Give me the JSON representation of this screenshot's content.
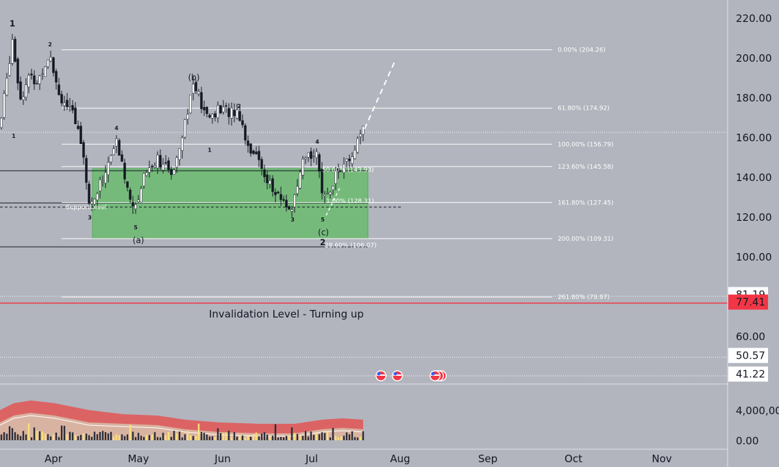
{
  "chart_data": {
    "type": "candlestick",
    "y_axis": {
      "ticks": [
        {
          "label": "220.00",
          "value": 220
        },
        {
          "label": "200.00",
          "value": 200
        },
        {
          "label": "180.00",
          "value": 180
        },
        {
          "label": "160.00",
          "value": 160
        },
        {
          "label": "140.00",
          "value": 140
        },
        {
          "label": "120.00",
          "value": 120
        },
        {
          "label": "100.00",
          "value": 100
        },
        {
          "label": "60.00",
          "value": 60
        }
      ],
      "price_tags": [
        {
          "label": "81.19",
          "value": 81.19,
          "style": "white"
        },
        {
          "label": "77.41",
          "value": 77.41,
          "style": "red"
        },
        {
          "label": "50.57",
          "value": 50.57,
          "style": "white"
        },
        {
          "label": "41.22",
          "value": 41.22,
          "style": "white"
        }
      ]
    },
    "volume_axis": {
      "ticks": [
        {
          "label": "4,000,000",
          "value": 4000000
        },
        {
          "label": "0.00",
          "value": 0
        }
      ]
    },
    "x_axis": {
      "ticks": [
        "Apr",
        "May",
        "Jun",
        "Jul",
        "Aug",
        "Sep",
        "Oct",
        "Nov"
      ]
    },
    "fib_levels": [
      {
        "label": "0.00% (204.26)",
        "value": 204.26
      },
      {
        "label": "61.80% (174.92)",
        "value": 174.92
      },
      {
        "label": "100.00% (156.79)",
        "value": 156.79
      },
      {
        "label": "123.60% (145.58)",
        "value": 145.58
      },
      {
        "label": "161.80% (127.45)",
        "value": 127.45
      },
      {
        "label": "200.00% (109.31)",
        "value": 109.31
      },
      {
        "label": "261.80% (79.97)",
        "value": 79.97
      }
    ],
    "box_fib_labels": [
      {
        "label": "50.00% (143.93)",
        "value": 143.93
      },
      {
        "label": "1.00% (128.31)",
        "value": 128.31
      },
      {
        "label": "28.60% (106.07)",
        "value": 106.07
      }
    ],
    "support_label": "SupportLevel",
    "invalidation_label": "Invalidation Level - Turning up",
    "invalidation_value": 77.41,
    "wave_labels": [
      {
        "text": "1",
        "day": 18,
        "price": 216
      },
      {
        "text": "2",
        "day": 73,
        "price": 206
      },
      {
        "text": "1",
        "day": 20,
        "price": 160
      },
      {
        "text": "3",
        "day": 131,
        "price": 119
      },
      {
        "text": "4",
        "day": 170,
        "price": 164
      },
      {
        "text": "5",
        "day": 198,
        "price": 114
      },
      {
        "text": "(a)",
        "day": 202,
        "price": 107
      },
      {
        "text": "(b)",
        "day": 283,
        "price": 189
      },
      {
        "text": "1",
        "day": 306,
        "price": 153
      },
      {
        "text": "2",
        "day": 349,
        "price": 175
      },
      {
        "text": "3",
        "day": 427,
        "price": 118
      },
      {
        "text": "4",
        "day": 463,
        "price": 157
      },
      {
        "text": "5",
        "day": 471,
        "price": 118
      },
      {
        "text": "(c)",
        "day": 472,
        "price": 111
      },
      {
        "text": "2",
        "day": 471,
        "price": 106
      }
    ]
  }
}
